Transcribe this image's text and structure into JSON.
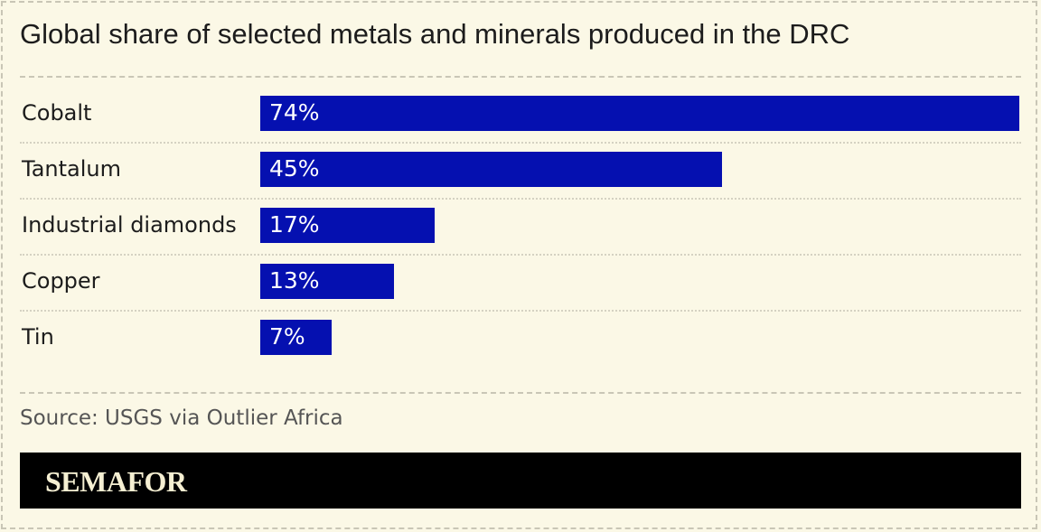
{
  "chart_data": {
    "type": "bar",
    "orientation": "horizontal",
    "title": "Global share of selected metals and minerals produced in the DRC",
    "categories": [
      "Cobalt",
      "Tantalum",
      "Industrial diamonds",
      "Copper",
      "Tin"
    ],
    "values": [
      74,
      45,
      17,
      13,
      7
    ],
    "value_labels": [
      "74%",
      "45%",
      "17%",
      "13%",
      "7%"
    ],
    "unit": "%",
    "xlabel": "",
    "ylabel": "",
    "xlim": [
      0,
      74
    ],
    "grid": false,
    "bar_color": "#0510b0"
  },
  "source": "Source: USGS via Outlier Africa",
  "brand": "SEMAFOR"
}
